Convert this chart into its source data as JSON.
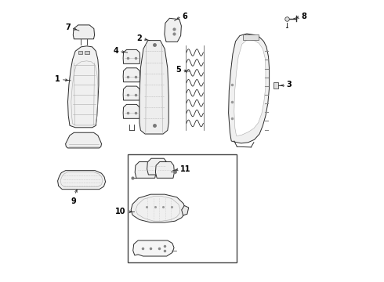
{
  "background_color": "#ffffff",
  "line_color": "#2a2a2a",
  "fig_width": 4.9,
  "fig_height": 3.6,
  "dpi": 100,
  "label_fontsize": 7.0
}
